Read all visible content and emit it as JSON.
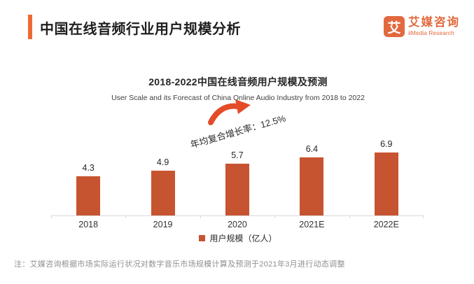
{
  "header": {
    "title": "中国在线音频行业用户规模分析",
    "accent_color": "#ED6A35"
  },
  "logo": {
    "glyph": "艾",
    "name_cn": "艾媒咨询",
    "name_en": "iiMedia Research",
    "color": "#E2693E"
  },
  "chart": {
    "legend_label": "用户规模（亿人）",
    "bar_color": "#C75430",
    "arrow_color": "#E44C28",
    "axis_color": "#D9D9D9"
  },
  "chart_data": {
    "type": "bar",
    "title": "2018-2022中国在线音频用户规模及预测",
    "subtitle": "User Scale and its Forecast of China Online Audio Industry from 2018 to 2022",
    "categories": [
      "2018",
      "2019",
      "2020",
      "2021E",
      "2022E"
    ],
    "values": [
      4.3,
      4.9,
      5.7,
      6.4,
      6.9
    ],
    "series_name": "用户规模（亿人）",
    "unit": "亿人",
    "annotation": "年均复合增长率：12.5%",
    "cagr_percent": 12.5,
    "ylim": [
      0,
      7.5
    ],
    "grid": false,
    "legend_position": "bottom",
    "value_labels_shown": true
  },
  "footnote": "注：艾媒咨询根据市场实际运行状况对数字音乐市场规模计算及预测于2021年3月进行动态调整"
}
